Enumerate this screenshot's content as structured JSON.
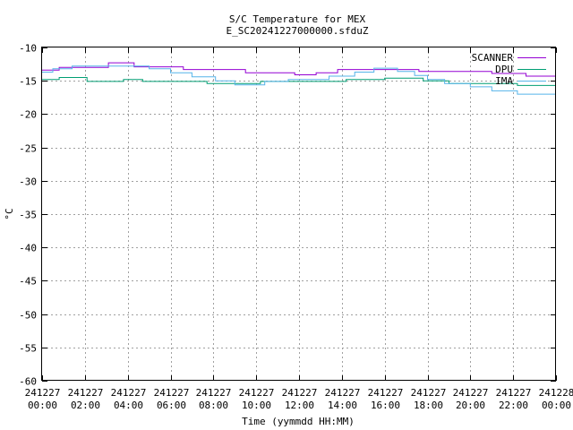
{
  "chart_data": {
    "type": "line",
    "title": "S/C Temperature for MEX",
    "subtitle": "E_SC20241227000000.sfduZ",
    "xlabel": "Time (yymmdd HH:MM)",
    "ylabel": "°C",
    "xlim": [
      0,
      24
    ],
    "ylim": [
      -60,
      -10
    ],
    "grid": true,
    "legend_position": "top-right",
    "y_ticks": [
      -10,
      -15,
      -20,
      -25,
      -30,
      -35,
      -40,
      -45,
      -50,
      -55,
      -60
    ],
    "x_ticks": [
      {
        "value": 0,
        "date": "241227",
        "time": "00:00"
      },
      {
        "value": 2,
        "date": "241227",
        "time": "02:00"
      },
      {
        "value": 4,
        "date": "241227",
        "time": "04:00"
      },
      {
        "value": 6,
        "date": "241227",
        "time": "06:00"
      },
      {
        "value": 8,
        "date": "241227",
        "time": "08:00"
      },
      {
        "value": 10,
        "date": "241227",
        "time": "10:00"
      },
      {
        "value": 12,
        "date": "241227",
        "time": "12:00"
      },
      {
        "value": 14,
        "date": "241227",
        "time": "14:00"
      },
      {
        "value": 16,
        "date": "241227",
        "time": "16:00"
      },
      {
        "value": 18,
        "date": "241227",
        "time": "18:00"
      },
      {
        "value": 20,
        "date": "241227",
        "time": "20:00"
      },
      {
        "value": 22,
        "date": "241227",
        "time": "22:00"
      },
      {
        "value": 24,
        "date": "241228",
        "time": "00:00"
      }
    ],
    "series": [
      {
        "name": "SCANNER",
        "color": "#9400d3",
        "points": [
          [
            0,
            -13.4
          ],
          [
            0.8,
            -13.4
          ],
          [
            0.8,
            -13.0
          ],
          [
            3.1,
            -13.0
          ],
          [
            3.1,
            -12.3
          ],
          [
            4.3,
            -12.3
          ],
          [
            4.3,
            -12.9
          ],
          [
            6.6,
            -12.9
          ],
          [
            6.6,
            -13.3
          ],
          [
            9.5,
            -13.3
          ],
          [
            9.5,
            -13.8
          ],
          [
            11.8,
            -13.8
          ],
          [
            11.8,
            -14.1
          ],
          [
            12.8,
            -14.1
          ],
          [
            12.8,
            -13.8
          ],
          [
            13.8,
            -13.8
          ],
          [
            13.8,
            -13.3
          ],
          [
            17.6,
            -13.3
          ],
          [
            17.6,
            -13.6
          ],
          [
            21.0,
            -13.6
          ],
          [
            21.0,
            -13.9
          ],
          [
            22.6,
            -13.9
          ],
          [
            22.6,
            -14.3
          ],
          [
            24,
            -14.3
          ]
        ]
      },
      {
        "name": "DPU",
        "color": "#009e73",
        "points": [
          [
            0,
            -14.8
          ],
          [
            0.8,
            -14.8
          ],
          [
            0.8,
            -14.5
          ],
          [
            2.1,
            -14.5
          ],
          [
            2.1,
            -15.1
          ],
          [
            3.8,
            -15.1
          ],
          [
            3.8,
            -14.8
          ],
          [
            4.7,
            -14.8
          ],
          [
            4.7,
            -15.1
          ],
          [
            7.7,
            -15.1
          ],
          [
            7.7,
            -15.4
          ],
          [
            10.2,
            -15.4
          ],
          [
            10.2,
            -15.1
          ],
          [
            14.2,
            -15.1
          ],
          [
            14.2,
            -14.8
          ],
          [
            16.0,
            -14.8
          ],
          [
            16.0,
            -14.6
          ],
          [
            17.8,
            -14.6
          ],
          [
            17.8,
            -15.0
          ],
          [
            19.0,
            -15.0
          ],
          [
            19.0,
            -15.4
          ],
          [
            22.2,
            -15.4
          ],
          [
            22.2,
            -15.7
          ],
          [
            24,
            -15.7
          ]
        ]
      },
      {
        "name": "IMA",
        "color": "#56b4e9",
        "points": [
          [
            0,
            -13.7
          ],
          [
            0.5,
            -13.7
          ],
          [
            0.5,
            -13.2
          ],
          [
            1.4,
            -13.2
          ],
          [
            1.4,
            -12.8
          ],
          [
            5.0,
            -12.8
          ],
          [
            5.0,
            -13.2
          ],
          [
            6.0,
            -13.2
          ],
          [
            6.0,
            -13.8
          ],
          [
            7.0,
            -13.8
          ],
          [
            7.0,
            -14.4
          ],
          [
            8.1,
            -14.4
          ],
          [
            8.1,
            -15.0
          ],
          [
            9.0,
            -15.0
          ],
          [
            9.0,
            -15.6
          ],
          [
            10.4,
            -15.6
          ],
          [
            10.4,
            -15.1
          ],
          [
            11.5,
            -15.1
          ],
          [
            11.5,
            -14.8
          ],
          [
            13.4,
            -14.8
          ],
          [
            13.4,
            -14.3
          ],
          [
            14.6,
            -14.3
          ],
          [
            14.6,
            -13.7
          ],
          [
            15.5,
            -13.7
          ],
          [
            15.5,
            -13.1
          ],
          [
            16.6,
            -13.1
          ],
          [
            16.6,
            -13.6
          ],
          [
            17.4,
            -13.6
          ],
          [
            17.4,
            -14.2
          ],
          [
            18.0,
            -14.2
          ],
          [
            18.0,
            -14.8
          ],
          [
            18.8,
            -14.8
          ],
          [
            18.8,
            -15.4
          ],
          [
            20.0,
            -15.4
          ],
          [
            20.0,
            -15.9
          ],
          [
            21.0,
            -15.9
          ],
          [
            21.0,
            -16.5
          ],
          [
            22.2,
            -16.5
          ],
          [
            22.2,
            -17.0
          ],
          [
            24,
            -17.0
          ]
        ]
      }
    ]
  }
}
